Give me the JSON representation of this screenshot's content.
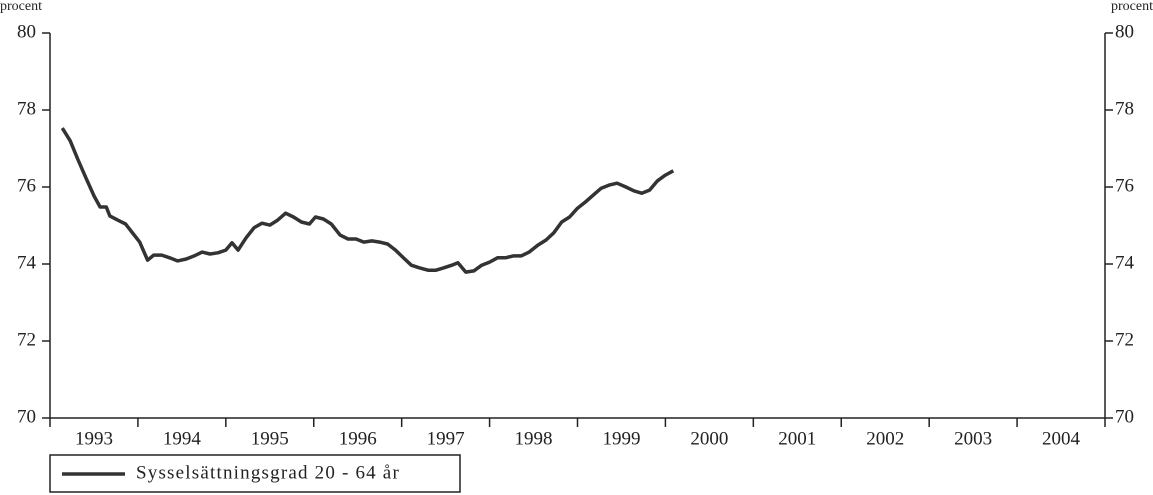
{
  "chart_data": {
    "type": "line",
    "ylabel": "procent",
    "ylim": [
      70,
      80
    ],
    "yticks": [
      70,
      72,
      74,
      76,
      78,
      80
    ],
    "xlim": [
      1993,
      2005
    ],
    "categories": [
      "1993",
      "1994",
      "1995",
      "1996",
      "1997",
      "1998",
      "1999",
      "2000",
      "2001",
      "2002",
      "2003",
      "2004"
    ],
    "legend": "lower left",
    "series": [
      {
        "name": "Sysselsättningsgrad 20 - 64 år",
        "color": "#333333",
        "x": [
          1993.14,
          1993.23,
          1993.32,
          1993.41,
          1993.5,
          1993.57,
          1993.64,
          1993.68,
          1993.77,
          1993.86,
          1993.93,
          1994.02,
          1994.11,
          1994.18,
          1994.27,
          1994.36,
          1994.45,
          1994.55,
          1994.64,
          1994.73,
          1994.82,
          1994.91,
          1995.0,
          1995.07,
          1995.14,
          1995.23,
          1995.32,
          1995.41,
          1995.5,
          1995.59,
          1995.68,
          1995.77,
          1995.86,
          1995.95,
          1996.02,
          1996.11,
          1996.2,
          1996.3,
          1996.39,
          1996.48,
          1996.57,
          1996.66,
          1996.75,
          1996.84,
          1996.93,
          1997.02,
          1997.11,
          1997.2,
          1997.3,
          1997.39,
          1997.48,
          1997.57,
          1997.64,
          1997.73,
          1997.82,
          1997.91,
          1998.0,
          1998.09,
          1998.18,
          1998.27,
          1998.36,
          1998.45,
          1998.55,
          1998.64,
          1998.73,
          1998.82,
          1998.91,
          1999.0,
          1999.09,
          1999.18,
          1999.27,
          1999.36,
          1999.45,
          1999.55,
          1999.64,
          1999.73,
          1999.82,
          1999.91,
          2000.0,
          2000.09
        ],
        "values": [
          77.53,
          77.2,
          76.7,
          76.23,
          75.77,
          75.48,
          75.48,
          75.25,
          75.14,
          75.04,
          74.83,
          74.57,
          74.1,
          74.23,
          74.23,
          74.16,
          74.08,
          74.13,
          74.21,
          74.31,
          74.26,
          74.29,
          74.36,
          74.55,
          74.36,
          74.68,
          74.94,
          75.06,
          75.01,
          75.14,
          75.32,
          75.22,
          75.09,
          75.04,
          75.22,
          75.17,
          75.04,
          74.75,
          74.65,
          74.65,
          74.57,
          74.6,
          74.57,
          74.52,
          74.36,
          74.16,
          73.97,
          73.9,
          73.84,
          73.84,
          73.9,
          73.97,
          74.03,
          73.79,
          73.82,
          73.97,
          74.05,
          74.16,
          74.16,
          74.21,
          74.21,
          74.31,
          74.49,
          74.62,
          74.81,
          75.09,
          75.22,
          75.45,
          75.61,
          75.79,
          75.97,
          76.05,
          76.1,
          76.0,
          75.9,
          75.84,
          75.92,
          76.16,
          76.31,
          76.42
        ]
      }
    ]
  }
}
